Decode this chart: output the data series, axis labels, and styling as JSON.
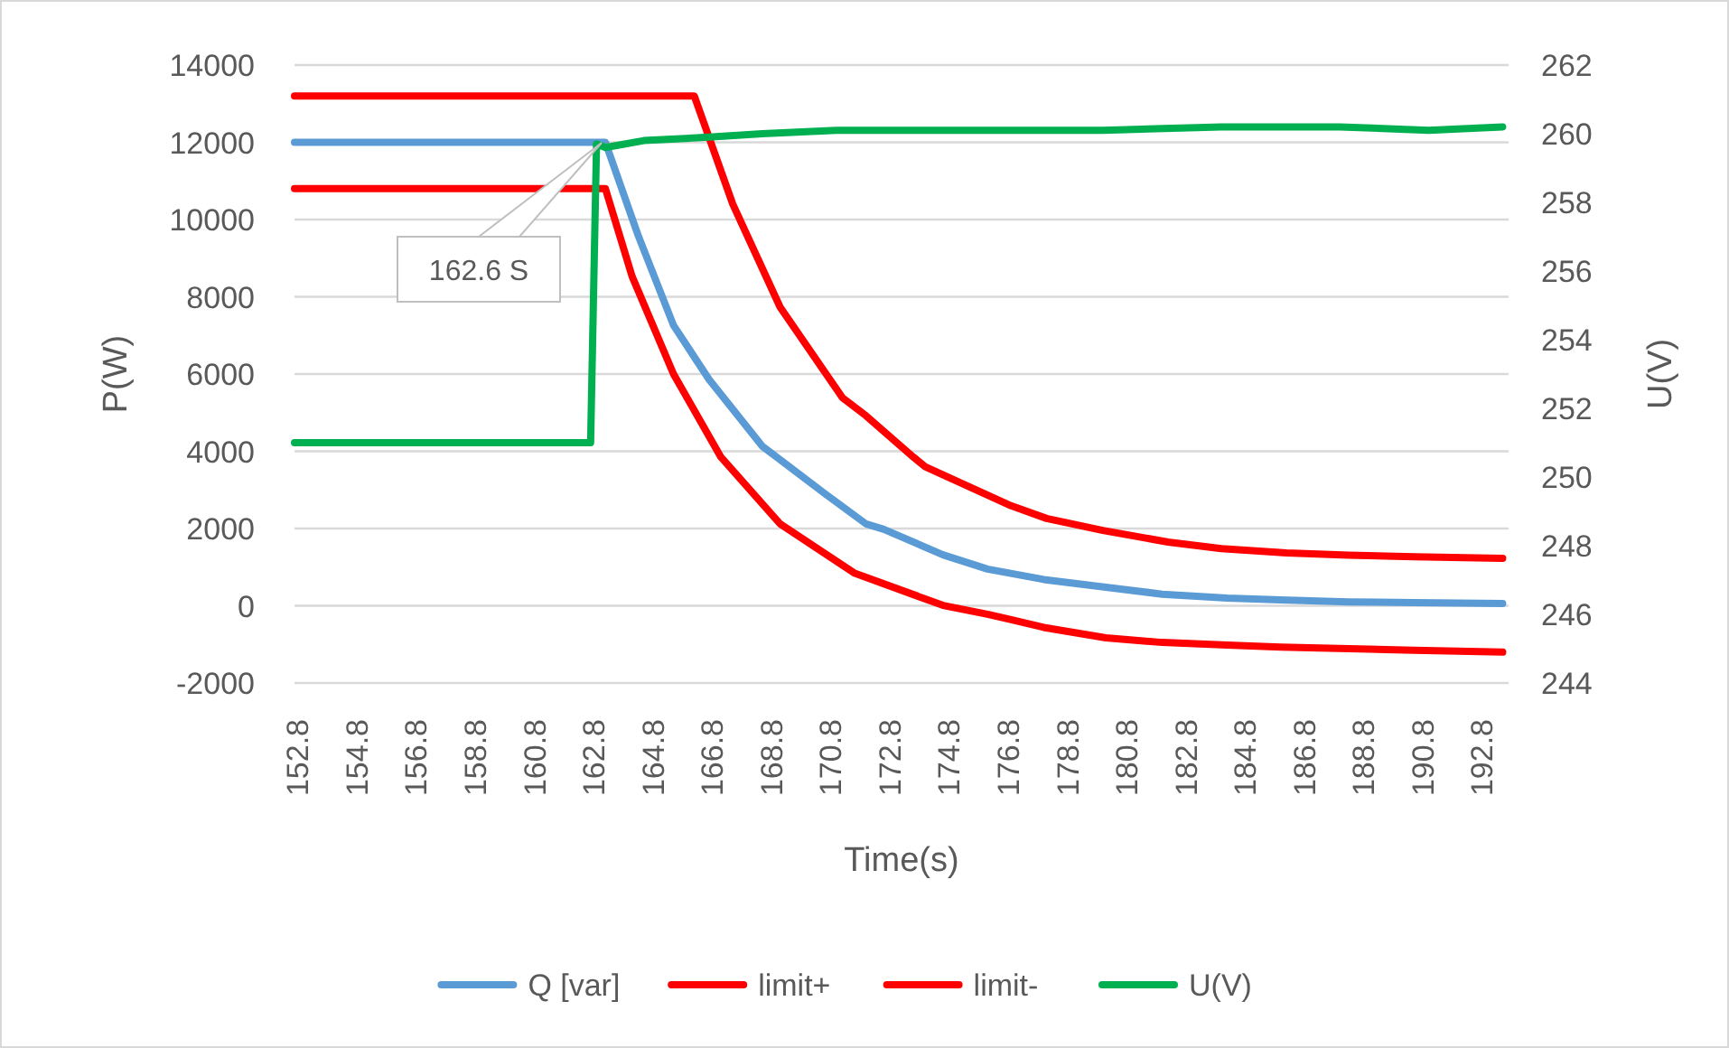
{
  "chart_data": {
    "type": "line",
    "xlabel": "Time(s)",
    "ylabel": "P(W)",
    "y2label": "U(V)",
    "xlim": [
      152.7,
      193.7
    ],
    "xticks": [
      152.8,
      154.8,
      156.8,
      158.8,
      160.8,
      162.8,
      164.8,
      166.8,
      168.8,
      170.8,
      172.8,
      174.8,
      176.8,
      178.8,
      180.8,
      182.8,
      184.8,
      186.8,
      188.8,
      190.8,
      192.8
    ],
    "ylim": [
      -2000,
      14000
    ],
    "yticks": [
      -2000,
      0,
      2000,
      4000,
      6000,
      8000,
      10000,
      12000,
      14000
    ],
    "y2lim": [
      244,
      262
    ],
    "y2ticks": [
      244,
      246,
      248,
      250,
      252,
      254,
      256,
      258,
      260,
      262
    ],
    "grid": "y",
    "legend": "bottom",
    "marker": "none",
    "line_style": "solid",
    "annotations": [
      "162.6 S"
    ],
    "series": [
      {
        "name": "Q [var]",
        "color": "#5b9bd5",
        "x": [
          152.7,
          155,
          158,
          161,
          163.2,
          164.3,
          165.5,
          166.7,
          168.5,
          170.6,
          172.0,
          172.6,
          174.6,
          176.1,
          178.0,
          180.1,
          182.0,
          184.2,
          186.0,
          188.3,
          190.5,
          193.5
        ],
        "values": [
          12000,
          12000,
          12000,
          12000,
          12000,
          9600,
          7260,
          5860,
          4130,
          2910,
          2120,
          1980,
          1320,
          950,
          680,
          480,
          300,
          200,
          150,
          100,
          80,
          60
        ]
      },
      {
        "name": "limit+",
        "color": "#ff0000",
        "x": [
          152.7,
          166.2,
          167.5,
          169.1,
          171.2,
          172.0,
          173.6,
          174.0,
          176.9,
          178.1,
          180.0,
          182.2,
          184.0,
          186.2,
          188.3,
          190.5,
          193.5
        ],
        "values": [
          13200,
          13200,
          10400,
          7730,
          5390,
          4920,
          3850,
          3600,
          2590,
          2260,
          1950,
          1650,
          1480,
          1370,
          1310,
          1270,
          1230
        ]
      },
      {
        "name": "limit-",
        "color": "#ff0000",
        "x": [
          152.7,
          163.2,
          164.1,
          165.5,
          167.1,
          169.1,
          171.6,
          174.6,
          176.1,
          176.9,
          178.0,
          180.1,
          182.0,
          184.2,
          186.0,
          188.3,
          190.5,
          193.5
        ],
        "values": [
          10800,
          10800,
          8530,
          6000,
          3850,
          2120,
          850,
          10,
          -220,
          -360,
          -560,
          -830,
          -950,
          -1020,
          -1070,
          -1110,
          -1150,
          -1200
        ]
      },
      {
        "name": "U(V)",
        "color": "#00b050",
        "axis": "y2",
        "x": [
          152.7,
          156,
          159,
          162.7,
          162.9,
          163.2,
          164.5,
          166.7,
          168.5,
          171,
          174,
          177,
          180,
          184,
          188,
          191,
          193.5
        ],
        "values": [
          251.0,
          251.0,
          251.0,
          251.0,
          259.7,
          259.6,
          259.8,
          259.9,
          260.0,
          260.1,
          260.1,
          260.1,
          260.1,
          260.2,
          260.2,
          260.1,
          260.2
        ]
      }
    ]
  }
}
